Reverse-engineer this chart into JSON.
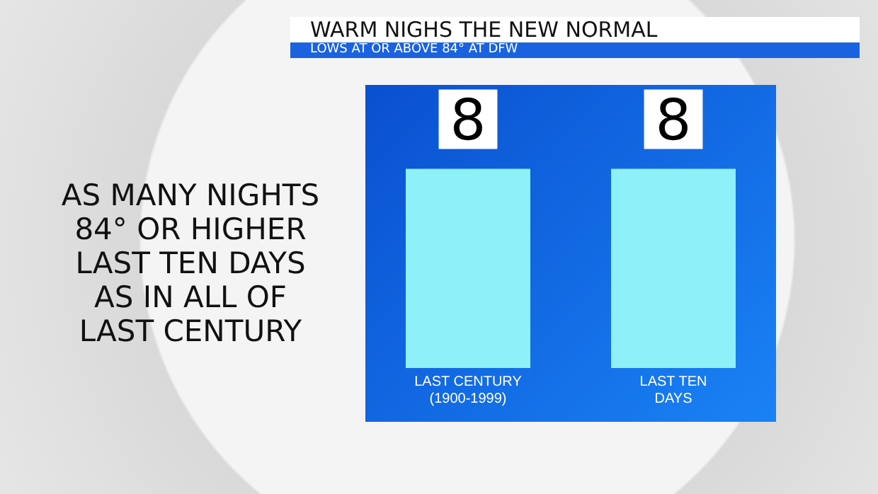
{
  "chart_data": {
    "type": "bar",
    "title": "WARM NIGHS THE NEW NORMAL",
    "subtitle": "LOWS AT OR ABOVE 84° AT DFW",
    "annotations": [
      "AS MANY NIGHTS\n84° OR HIGHER\nLAST TEN DAYS\nAS IN ALL OF\nLAST CENTURY"
    ],
    "categories": [
      "LAST CENTURY\n(1900-1999)",
      "LAST TEN\nDAYS"
    ],
    "values": [
      8,
      8
    ],
    "color": "#8ef0f8",
    "data_labels": true
  }
}
